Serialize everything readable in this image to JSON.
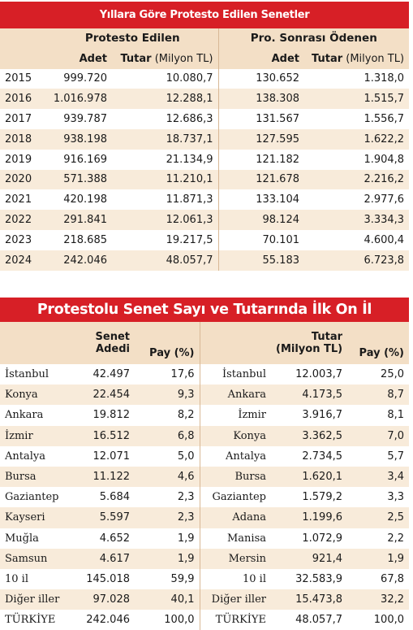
{
  "table1": {
    "title": "Yıllara Göre Protesto Edilen Senetler",
    "group_headers": [
      "Protesto Edilen",
      "Pro. Sonrası Ödenen"
    ],
    "col_adet": "Adet",
    "col_tutar": "Tutar",
    "col_tutar_unit": "(Milyon TL)",
    "rows": [
      [
        "2015",
        "999.720",
        "10.080,7",
        "130.652",
        "1.318,0"
      ],
      [
        "2016",
        "1.016.978",
        "12.288,1",
        "138.308",
        "1.515,7"
      ],
      [
        "2017",
        "939.787",
        "12.686,3",
        "131.567",
        "1.556,7"
      ],
      [
        "2018",
        "938.198",
        "18.737,1",
        "127.595",
        "1.622,2"
      ],
      [
        "2019",
        "916.169",
        "21.134,9",
        "121.182",
        "1.904,8"
      ],
      [
        "2020",
        "571.388",
        "11.210,1",
        "121.678",
        "2.216,2"
      ],
      [
        "2021",
        "420.198",
        "11.871,3",
        "133.104",
        "2.977,6"
      ],
      [
        "2022",
        "291.841",
        "12.061,3",
        "98.124",
        "3.334,3"
      ],
      [
        "2023",
        "218.685",
        "19.217,5",
        "70.101",
        "4.600,4"
      ],
      [
        "2024",
        "242.046",
        "48.057,7",
        "55.183",
        "6.723,8"
      ]
    ]
  },
  "table2": {
    "title": "Protestolu Senet Sayı ve Tutarında İlk On İl",
    "header_senet_1": "Senet",
    "header_senet_2": "Adedi",
    "header_pay": "Pay (%)",
    "header_tutar_1": "Tutar",
    "header_tutar_2": "(Milyon TL)",
    "header_pay_2": "Pay (%)",
    "rows": [
      [
        "İstanbul",
        "42.497",
        "17,6",
        "İstanbul",
        "12.003,7",
        "25,0"
      ],
      [
        "Konya",
        "22.454",
        "9,3",
        "Ankara",
        "4.173,5",
        "8,7"
      ],
      [
        "Ankara",
        "19.812",
        "8,2",
        "İzmir",
        "3.916,7",
        "8,1"
      ],
      [
        "İzmir",
        "16.512",
        "6,8",
        "Konya",
        "3.362,5",
        "7,0"
      ],
      [
        "Antalya",
        "12.071",
        "5,0",
        "Antalya",
        "2.734,5",
        "5,7"
      ],
      [
        "Bursa",
        "11.122",
        "4,6",
        "Bursa",
        "1.620,1",
        "3,4"
      ],
      [
        "Gaziantep",
        "5.684",
        "2,3",
        "Gaziantep",
        "1.579,2",
        "3,3"
      ],
      [
        "Kayseri",
        "5.597",
        "2,3",
        "Adana",
        "1.199,6",
        "2,5"
      ],
      [
        "Muğla",
        "4.652",
        "1,9",
        "Manisa",
        "1.072,9",
        "2,2"
      ],
      [
        "Samsun",
        "4.617",
        "1,9",
        "Mersin",
        "921,4",
        "1,9"
      ],
      [
        "10 il",
        "145.018",
        "59,9",
        "10 il",
        "32.583,9",
        "67,8"
      ],
      [
        "Diğer iller",
        "97.028",
        "40,1",
        "Diğer iller",
        "15.473,8",
        "32,2"
      ],
      [
        "TÜRKİYE",
        "242.046",
        "100,0",
        "TÜRKİYE",
        "48.057,7",
        "100,0"
      ]
    ]
  }
}
